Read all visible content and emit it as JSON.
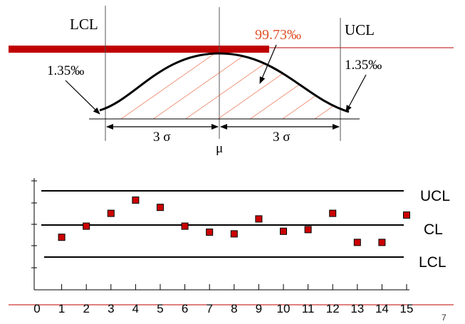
{
  "normal_curve": {
    "lcl_label": "LCL",
    "ucl_label": "UCL",
    "center_percent": "99.73‰",
    "left_tail_percent": "1.35‰",
    "right_tail_percent": "1.35‰",
    "left_sigma_label": "3 σ",
    "right_sigma_label": "3 σ",
    "mu_label": "μ"
  },
  "control_chart": {
    "ucl_label": "UCL",
    "cl_label": "CL",
    "lcl_label": "LCL",
    "x_ticks": [
      "0",
      "1",
      "2",
      "3",
      "4",
      "5",
      "6",
      "7",
      "8",
      "9",
      "10",
      "11",
      "12",
      "13",
      "14",
      "15"
    ],
    "points": [
      {
        "x": 1,
        "y": 0.65
      },
      {
        "x": 2,
        "y": 1.95
      },
      {
        "x": 3,
        "y": 3.45
      },
      {
        "x": 4,
        "y": 5.0
      },
      {
        "x": 5,
        "y": 4.15
      },
      {
        "x": 6,
        "y": 1.95
      },
      {
        "x": 7,
        "y": 1.25
      },
      {
        "x": 8,
        "y": 1.05
      },
      {
        "x": 9,
        "y": 2.8
      },
      {
        "x": 10,
        "y": 1.35
      },
      {
        "x": 11,
        "y": 1.55
      },
      {
        "x": 12,
        "y": 3.45
      },
      {
        "x": 13,
        "y": 0.05
      },
      {
        "x": 14,
        "y": 0.05
      },
      {
        "x": 15,
        "y": 3.25
      }
    ]
  },
  "page_number": "7",
  "colors": {
    "accent": "#c00000",
    "marker": "#cc0000",
    "highlight_text": "#e0502a",
    "hatch": "#e8603a",
    "ink": "#000000"
  }
}
